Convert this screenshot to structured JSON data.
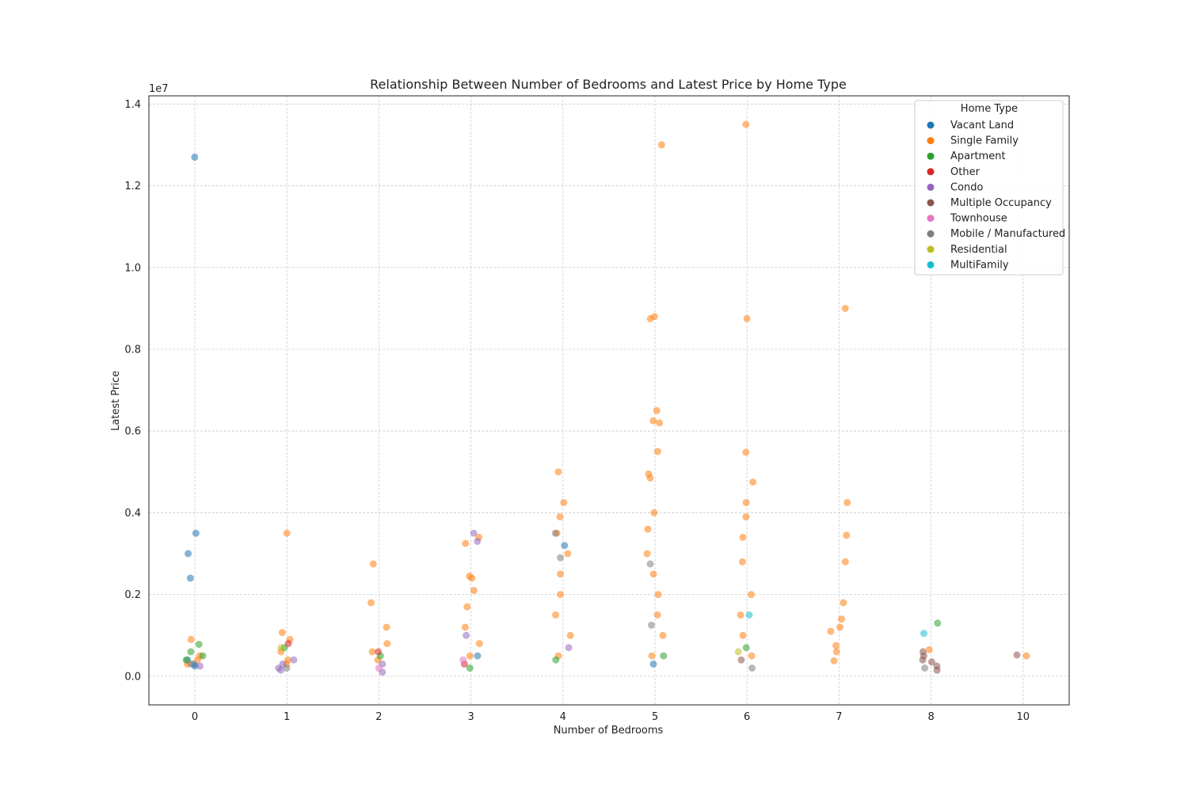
{
  "chart_data": {
    "type": "scatter",
    "title": "Relationship Between Number of Bedrooms and Latest Price by Home Type",
    "xlabel": "Number of Bedrooms",
    "ylabel": "Latest Price",
    "y_offset_label": "1e7",
    "x_categories": [
      "0",
      "1",
      "2",
      "3",
      "4",
      "5",
      "6",
      "7",
      "8",
      "10"
    ],
    "ylim": [
      -0.07,
      1.42
    ],
    "y_ticks": [
      0.0,
      0.2,
      0.4,
      0.6,
      0.8,
      1.0,
      1.2,
      1.4
    ],
    "y_tick_labels": [
      "0.0",
      "0.2",
      "0.4",
      "0.6",
      "0.8",
      "1.0",
      "1.2",
      "1.4"
    ],
    "grid": true,
    "legend": {
      "title": "Home Type",
      "placement": "top-right"
    },
    "series": [
      {
        "name": "Vacant Land",
        "color": "#1f77b4",
        "points": [
          [
            0,
            1.27
          ],
          [
            0,
            0.35
          ],
          [
            0,
            0.3
          ],
          [
            0,
            0.24
          ],
          [
            0,
            0.03
          ],
          [
            0,
            0.025
          ],
          [
            0,
            0.04
          ],
          [
            3,
            0.05
          ],
          [
            4,
            0.32
          ],
          [
            5,
            0.03
          ]
        ]
      },
      {
        "name": "Single Family",
        "color": "#ff7f0e",
        "points": [
          [
            0,
            0.09
          ],
          [
            0,
            0.05
          ],
          [
            0,
            0.04
          ],
          [
            0,
            0.03
          ],
          [
            1,
            0.35
          ],
          [
            1,
            0.107
          ],
          [
            1,
            0.09
          ],
          [
            1,
            0.06
          ],
          [
            1,
            0.04
          ],
          [
            1,
            0.03
          ],
          [
            2,
            0.275
          ],
          [
            2,
            0.18
          ],
          [
            2,
            0.12
          ],
          [
            2,
            0.08
          ],
          [
            2,
            0.06
          ],
          [
            2,
            0.04
          ],
          [
            3,
            0.34
          ],
          [
            3,
            0.325
          ],
          [
            3,
            0.245
          ],
          [
            3,
            0.24
          ],
          [
            3,
            0.21
          ],
          [
            3,
            0.17
          ],
          [
            3,
            0.12
          ],
          [
            3,
            0.08
          ],
          [
            3,
            0.05
          ],
          [
            4,
            0.5
          ],
          [
            4,
            0.425
          ],
          [
            4,
            0.39
          ],
          [
            4,
            0.35
          ],
          [
            4,
            0.3
          ],
          [
            4,
            0.25
          ],
          [
            4,
            0.2
          ],
          [
            4,
            0.15
          ],
          [
            4,
            0.1
          ],
          [
            4,
            0.05
          ],
          [
            5,
            1.3
          ],
          [
            5,
            0.88
          ],
          [
            5,
            0.875
          ],
          [
            5,
            0.65
          ],
          [
            5,
            0.625
          ],
          [
            5,
            0.62
          ],
          [
            5,
            0.55
          ],
          [
            5,
            0.495
          ],
          [
            5,
            0.485
          ],
          [
            5,
            0.4
          ],
          [
            5,
            0.36
          ],
          [
            5,
            0.3
          ],
          [
            5,
            0.25
          ],
          [
            5,
            0.2
          ],
          [
            5,
            0.15
          ],
          [
            5,
            0.1
          ],
          [
            5,
            0.05
          ],
          [
            6,
            1.35
          ],
          [
            6,
            0.875
          ],
          [
            6,
            0.548
          ],
          [
            6,
            0.475
          ],
          [
            6,
            0.425
          ],
          [
            6,
            0.39
          ],
          [
            6,
            0.34
          ],
          [
            6,
            0.28
          ],
          [
            6,
            0.2
          ],
          [
            6,
            0.15
          ],
          [
            6,
            0.1
          ],
          [
            6,
            0.05
          ],
          [
            7,
            0.9
          ],
          [
            7,
            0.425
          ],
          [
            7,
            0.345
          ],
          [
            7,
            0.28
          ],
          [
            7,
            0.18
          ],
          [
            7,
            0.14
          ],
          [
            7,
            0.12
          ],
          [
            7,
            0.11
          ],
          [
            7,
            0.075
          ],
          [
            7,
            0.06
          ],
          [
            7,
            0.038
          ],
          [
            8,
            0.065
          ],
          [
            10,
            0.05
          ]
        ]
      },
      {
        "name": "Apartment",
        "color": "#2ca02c",
        "points": [
          [
            0,
            0.078
          ],
          [
            0,
            0.06
          ],
          [
            0,
            0.05
          ],
          [
            0,
            0.04
          ],
          [
            1,
            0.07
          ],
          [
            2,
            0.05
          ],
          [
            3,
            0.02
          ],
          [
            4,
            0.04
          ],
          [
            5,
            0.05
          ],
          [
            6,
            0.07
          ],
          [
            8,
            0.13
          ]
        ]
      },
      {
        "name": "Other",
        "color": "#d62728",
        "points": [
          [
            1,
            0.08
          ],
          [
            2,
            0.06
          ],
          [
            3,
            0.03
          ]
        ]
      },
      {
        "name": "Condo",
        "color": "#9467bd",
        "points": [
          [
            0,
            0.025
          ],
          [
            1,
            0.04
          ],
          [
            1,
            0.03
          ],
          [
            1,
            0.02
          ],
          [
            1,
            0.015
          ],
          [
            2,
            0.03
          ],
          [
            2,
            0.01
          ],
          [
            3,
            0.35
          ],
          [
            3,
            0.33
          ],
          [
            3,
            0.1
          ],
          [
            4,
            0.07
          ]
        ]
      },
      {
        "name": "Multiple Occupancy",
        "color": "#8c564b",
        "points": [
          [
            6,
            0.04
          ],
          [
            8,
            0.06
          ],
          [
            8,
            0.05
          ],
          [
            8,
            0.04
          ],
          [
            8,
            0.035
          ],
          [
            8,
            0.025
          ],
          [
            8,
            0.015
          ],
          [
            10,
            0.052
          ]
        ]
      },
      {
        "name": "Townhouse",
        "color": "#e377c2",
        "points": [
          [
            2,
            0.02
          ],
          [
            3,
            0.04
          ]
        ]
      },
      {
        "name": "Mobile / Manufactured",
        "color": "#7f7f7f",
        "points": [
          [
            0,
            0.03
          ],
          [
            1,
            0.02
          ],
          [
            4,
            0.35
          ],
          [
            4,
            0.29
          ],
          [
            5,
            0.275
          ],
          [
            5,
            0.125
          ],
          [
            6,
            0.02
          ],
          [
            8,
            0.02
          ]
        ]
      },
      {
        "name": "Residential",
        "color": "#bcbd22",
        "points": [
          [
            1,
            0.07
          ],
          [
            6,
            0.06
          ]
        ]
      },
      {
        "name": "MultiFamily",
        "color": "#17becf",
        "points": [
          [
            6,
            0.15
          ],
          [
            8,
            0.105
          ]
        ]
      }
    ]
  }
}
